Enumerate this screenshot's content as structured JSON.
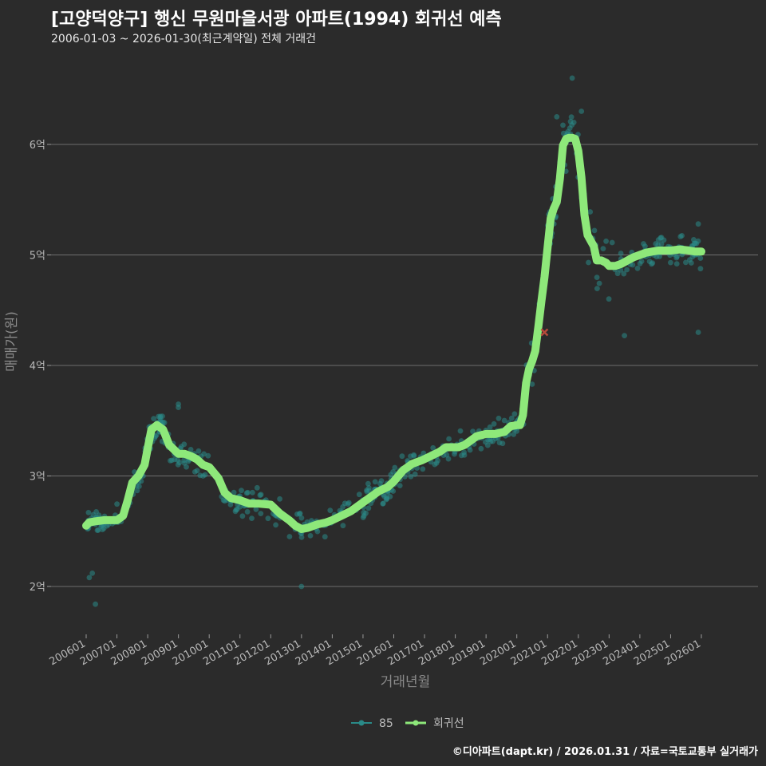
{
  "header": {
    "title": "[고양덕양구] 행신 무원마을서광 아파트(1994) 회귀선 예측",
    "subtitle": "2006-01-03 ~ 2026-01-30(최근계약일) 전체 거래건"
  },
  "caption": "©디아파트(dapt.kr) / 2026.01.31 / 자료=국토교통부 실거래가",
  "colors": {
    "scatter": "#2a8a88",
    "line": "#8ee87a",
    "latest": "#b84a3a",
    "grid": "#6e6e6e"
  },
  "chart_data": {
    "type": "scatter",
    "title": "[고양덕양구] 행신 무원마을서광 아파트(1994) 회귀선 예측",
    "xlabel": "거래년월",
    "ylabel": "매매가(원)",
    "xlim": [
      2006.0,
      2026.08
    ],
    "ylim": [
      1.55,
      6.95
    ],
    "yticks": [
      2,
      3,
      4,
      5,
      6
    ],
    "ytick_labels": [
      "2억",
      "3억",
      "4억",
      "5억",
      "6억"
    ],
    "xtick_years": [
      2006,
      2007,
      2008,
      2009,
      2010,
      2011,
      2012,
      2013,
      2014,
      2015,
      2016,
      2017,
      2018,
      2019,
      2020,
      2021,
      2022,
      2023,
      2024,
      2025,
      2026
    ],
    "xtick_labels": [
      "200601",
      "200701",
      "200801",
      "200901",
      "201001",
      "201101",
      "201201",
      "201301",
      "201401",
      "201501",
      "201601",
      "201701",
      "201801",
      "201901",
      "202001",
      "202101",
      "202201",
      "202301",
      "202401",
      "202501",
      "202601"
    ],
    "legend": [
      {
        "name": "85",
        "kind": "scatter"
      },
      {
        "name": "회귀선",
        "kind": "line"
      }
    ],
    "regression": {
      "name": "회귀선",
      "x": [
        2006.0,
        2006.1,
        2006.3,
        2006.6,
        2006.8,
        2007.0,
        2007.2,
        2007.35,
        2007.5,
        2007.7,
        2007.9,
        2008.0,
        2008.12,
        2008.3,
        2008.5,
        2008.7,
        2009.0,
        2009.2,
        2009.4,
        2009.6,
        2009.8,
        2010.0,
        2010.15,
        2010.3,
        2010.5,
        2010.7,
        2011.0,
        2011.3,
        2011.6,
        2012.0,
        2012.3,
        2012.6,
        2012.8,
        2013.0,
        2013.2,
        2013.5,
        2013.8,
        2014.0,
        2014.3,
        2014.6,
        2014.9,
        2015.2,
        2015.5,
        2015.8,
        2016.0,
        2016.3,
        2016.6,
        2016.9,
        2017.2,
        2017.5,
        2017.7,
        2017.9,
        2018.1,
        2018.3,
        2018.5,
        2018.7,
        2019.0,
        2019.3,
        2019.6,
        2019.8,
        2020.0,
        2020.1,
        2020.2,
        2020.3,
        2020.4,
        2020.5,
        2020.6,
        2020.7,
        2020.8,
        2020.9,
        2021.0,
        2021.1,
        2021.2,
        2021.3,
        2021.4,
        2021.5,
        2021.6,
        2021.7,
        2021.8,
        2021.9,
        2022.0,
        2022.1,
        2022.2,
        2022.3,
        2022.4,
        2022.5,
        2022.6,
        2022.75,
        2022.9,
        2023.0,
        2023.2,
        2023.4,
        2023.6,
        2023.8,
        2024.0,
        2024.2,
        2024.4,
        2024.6,
        2024.8,
        2025.0,
        2025.3,
        2025.6,
        2025.8,
        2026.0
      ],
      "y": [
        2.55,
        2.58,
        2.59,
        2.6,
        2.6,
        2.6,
        2.64,
        2.78,
        2.94,
        3.0,
        3.1,
        3.25,
        3.42,
        3.46,
        3.42,
        3.28,
        3.2,
        3.2,
        3.18,
        3.15,
        3.1,
        3.08,
        3.03,
        2.98,
        2.85,
        2.8,
        2.78,
        2.75,
        2.75,
        2.74,
        2.66,
        2.6,
        2.55,
        2.52,
        2.53,
        2.56,
        2.58,
        2.6,
        2.64,
        2.68,
        2.74,
        2.8,
        2.86,
        2.9,
        2.95,
        3.05,
        3.11,
        3.14,
        3.18,
        3.22,
        3.26,
        3.26,
        3.26,
        3.28,
        3.32,
        3.36,
        3.38,
        3.38,
        3.4,
        3.45,
        3.46,
        3.46,
        3.55,
        3.84,
        3.97,
        4.04,
        4.13,
        4.35,
        4.58,
        4.8,
        5.07,
        5.33,
        5.42,
        5.48,
        5.69,
        5.99,
        6.05,
        6.06,
        6.06,
        6.05,
        5.94,
        5.7,
        5.36,
        5.18,
        5.13,
        5.08,
        4.95,
        4.95,
        4.93,
        4.9,
        4.9,
        4.92,
        4.95,
        4.98,
        5.0,
        5.02,
        5.03,
        5.04,
        5.04,
        5.04,
        5.05,
        5.04,
        5.03,
        5.03
      ]
    },
    "latest_marker": {
      "x": 2020.9,
      "y": 4.3
    }
  }
}
